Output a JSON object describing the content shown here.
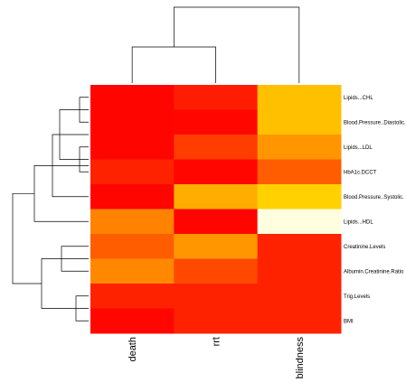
{
  "chart_data": {
    "type": "heatmap",
    "title": "",
    "xlabel": "",
    "ylabel": "",
    "columns": [
      "death",
      "rrt",
      "blindness"
    ],
    "rows": [
      "Lipids...CHL",
      "Blood.Pressure..Diastolic.",
      "Lipids...LDL",
      "HbA1c.DCCT",
      "Blood.Pressure..Systolic.",
      "Lipids...HDL",
      "Creatinine.Levels",
      "Albumin.Creatinine.Ratio",
      "Trig.Levels",
      "BMI"
    ],
    "values": [
      [
        0.02,
        0.12,
        0.85
      ],
      [
        0.02,
        0.03,
        0.85
      ],
      [
        0.02,
        0.25,
        0.62
      ],
      [
        0.14,
        0.03,
        0.38
      ],
      [
        0.02,
        0.75,
        1.0
      ],
      [
        0.53,
        0.02,
        1.7
      ],
      [
        0.38,
        0.62,
        0.14
      ],
      [
        0.55,
        0.3,
        0.14
      ],
      [
        0.14,
        0.14,
        0.14
      ],
      [
        0.03,
        0.14,
        0.14
      ]
    ],
    "colorscale": [
      "#ff0000",
      "#ff4500",
      "#ff8c00",
      "#ffc000",
      "#ffe000",
      "#ffff00",
      "#ffffe0"
    ],
    "color_range": [
      0,
      1.7
    ],
    "row_dendrogram": "left",
    "column_dendrogram": "top",
    "legend": "none",
    "grid": false
  }
}
